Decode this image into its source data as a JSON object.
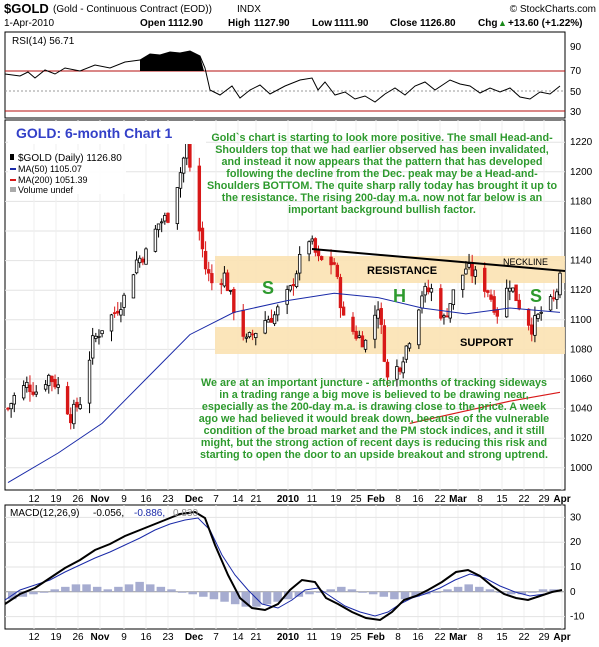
{
  "header": {
    "symbol": "$GOLD",
    "description": "(Gold - Continuous Contract (EOD))",
    "exchange": "INDX",
    "source": "© StockCharts.com",
    "date": "1-Apr-2010",
    "open_label": "Open",
    "open": "1112.90",
    "high_label": "High",
    "high": "1127.90",
    "low_label": "Low",
    "low": "1111.90",
    "close_label": "Close",
    "close": "1126.80",
    "chg_label": "Chg",
    "chg": "+13.60 (+1.22%)",
    "chg_arrow": "▲"
  },
  "rsi_panel": {
    "legend": "RSI(14) 56.71",
    "ticks": [
      "90",
      "70",
      "50",
      "30"
    ]
  },
  "price_panel": {
    "chart_title": "GOLD: 6-month Chart 1",
    "legend_symbol": "$GOLD (Daily) 1126.80",
    "legend_ma50": "MA(50) 1105.07",
    "legend_ma200": "MA(200) 1051.39",
    "legend_volume": "Volume undef",
    "ticks": [
      "1220",
      "1200",
      "1180",
      "1160",
      "1140",
      "1120",
      "1100",
      "1080",
      "1060",
      "1040",
      "1020",
      "1000"
    ],
    "annotations": {
      "comment_top": "Gold`s chart is starting to look more positive. The small Head-and-Shoulders top that we had earlier observed has been invalidated, and instead it now appears that the pattern that has developed following the decline from the Dec. peak may be a Head-and-Shoulders BOTTOM. The quite sharp rally today has brought it up to the resistance. The rising 200-day m.a. now not far below is an important background bullish factor.",
      "comment_bottom": "We are at an important juncture - after months of tracking sideways in a trading range a big move is believed to be drawing near, especially as the 200-day m.a. is drawing close to the price. A week ago we had believed it would break down, because of the vulnerable condition of the broad market and the PM stock indices, and it still might, but the strong action of recent days is reducing this risk and starting to open the door to an upside breakout and strong uptrend.",
      "resistance": "RESISTANCE",
      "support": "SUPPORT",
      "neckline": "NECKLINE",
      "left_shoulder": "S",
      "head": "H",
      "right_shoulder": "S"
    }
  },
  "macd_panel": {
    "legend_label": "MACD(12,26,9)",
    "legend_macd": "-0.056,",
    "legend_signal": "-0.886,",
    "legend_hist": "0.830",
    "ticks": [
      "30",
      "20",
      "10",
      "0",
      "-10"
    ]
  },
  "x_axis": {
    "labels": [
      "12",
      "19",
      "26",
      "Nov",
      "9",
      "16",
      "23",
      "Dec",
      "7",
      "14",
      "21",
      "2010",
      "11",
      "19",
      "25",
      "Feb",
      "8",
      "16",
      "22",
      "Mar",
      "8",
      "15",
      "22",
      "29",
      "Apr"
    ]
  },
  "colors": {
    "up": "#000000",
    "down": "#d81818",
    "ma50": "#1a2aa8",
    "ma200": "#d81818",
    "band": "#fbe2b3",
    "annotation": "#2e9a2e",
    "title": "#3340c8"
  },
  "chart_data": {
    "type": "candlestick",
    "period": "Daily",
    "x_range": [
      "2009-10-07",
      "2010-04-01"
    ],
    "ylim": [
      985,
      1235
    ],
    "y_ticks": [
      1000,
      1020,
      1040,
      1060,
      1080,
      1100,
      1120,
      1140,
      1160,
      1180,
      1200,
      1220
    ],
    "close_series": [
      {
        "x": "2009-10-07",
        "y": 1040
      },
      {
        "x": "2009-10-09",
        "y": 1048
      },
      {
        "x": "2009-10-13",
        "y": 1056
      },
      {
        "x": "2009-10-16",
        "y": 1052
      },
      {
        "x": "2009-10-20",
        "y": 1062
      },
      {
        "x": "2009-10-23",
        "y": 1055
      },
      {
        "x": "2009-10-27",
        "y": 1035
      },
      {
        "x": "2009-10-30",
        "y": 1045
      },
      {
        "x": "2009-11-03",
        "y": 1085
      },
      {
        "x": "2009-11-06",
        "y": 1095
      },
      {
        "x": "2009-11-10",
        "y": 1105
      },
      {
        "x": "2009-11-13",
        "y": 1115
      },
      {
        "x": "2009-11-17",
        "y": 1140
      },
      {
        "x": "2009-11-20",
        "y": 1145
      },
      {
        "x": "2009-11-24",
        "y": 1165
      },
      {
        "x": "2009-11-27",
        "y": 1170
      },
      {
        "x": "2009-12-01",
        "y": 1200
      },
      {
        "x": "2009-12-03",
        "y": 1218
      },
      {
        "x": "2009-12-07",
        "y": 1160
      },
      {
        "x": "2009-12-09",
        "y": 1135
      },
      {
        "x": "2009-12-11",
        "y": 1125
      },
      {
        "x": "2009-12-15",
        "y": 1130
      },
      {
        "x": "2009-12-18",
        "y": 1108
      },
      {
        "x": "2009-12-22",
        "y": 1085
      },
      {
        "x": "2009-12-28",
        "y": 1100
      },
      {
        "x": "2009-12-31",
        "y": 1103
      },
      {
        "x": "2010-01-05",
        "y": 1120
      },
      {
        "x": "2010-01-08",
        "y": 1140
      },
      {
        "x": "2010-01-11",
        "y": 1155
      },
      {
        "x": "2010-01-14",
        "y": 1140
      },
      {
        "x": "2010-01-19",
        "y": 1138
      },
      {
        "x": "2010-01-22",
        "y": 1100
      },
      {
        "x": "2010-01-26",
        "y": 1090
      },
      {
        "x": "2010-01-29",
        "y": 1085
      },
      {
        "x": "2010-02-02",
        "y": 1110
      },
      {
        "x": "2010-02-05",
        "y": 1060
      },
      {
        "x": "2010-02-09",
        "y": 1070
      },
      {
        "x": "2010-02-12",
        "y": 1088
      },
      {
        "x": "2010-02-16",
        "y": 1118
      },
      {
        "x": "2010-02-19",
        "y": 1120
      },
      {
        "x": "2010-02-23",
        "y": 1100
      },
      {
        "x": "2010-02-26",
        "y": 1118
      },
      {
        "x": "2010-03-02",
        "y": 1135
      },
      {
        "x": "2010-03-05",
        "y": 1130
      },
      {
        "x": "2010-03-09",
        "y": 1120
      },
      {
        "x": "2010-03-12",
        "y": 1105
      },
      {
        "x": "2010-03-16",
        "y": 1125
      },
      {
        "x": "2010-03-19",
        "y": 1110
      },
      {
        "x": "2010-03-23",
        "y": 1095
      },
      {
        "x": "2010-03-26",
        "y": 1105
      },
      {
        "x": "2010-03-30",
        "y": 1113
      },
      {
        "x": "2010-04-01",
        "y": 1127
      }
    ],
    "ma50_series": [
      {
        "x": "2009-10-07",
        "y": 990
      },
      {
        "x": "2009-10-23",
        "y": 1010
      },
      {
        "x": "2009-11-06",
        "y": 1030
      },
      {
        "x": "2009-11-20",
        "y": 1060
      },
      {
        "x": "2009-12-04",
        "y": 1090
      },
      {
        "x": "2009-12-18",
        "y": 1105
      },
      {
        "x": "2010-01-04",
        "y": 1113
      },
      {
        "x": "2010-01-19",
        "y": 1118
      },
      {
        "x": "2010-02-02",
        "y": 1115
      },
      {
        "x": "2010-02-16",
        "y": 1108
      },
      {
        "x": "2010-03-02",
        "y": 1104
      },
      {
        "x": "2010-03-16",
        "y": 1108
      },
      {
        "x": "2010-04-01",
        "y": 1105
      }
    ],
    "ma200_series": [
      {
        "x": "2010-02-12",
        "y": 1030
      },
      {
        "x": "2010-03-01",
        "y": 1038
      },
      {
        "x": "2010-03-16",
        "y": 1045
      },
      {
        "x": "2010-04-01",
        "y": 1051
      }
    ],
    "support_band": [
      1080,
      1100
    ],
    "resistance_band": [
      1130,
      1145
    ],
    "neckline": [
      {
        "x": "2010-01-11",
        "y": 1162
      },
      {
        "x": "2010-04-01",
        "y": 1138
      }
    ],
    "rsi": {
      "ylim": [
        25,
        95
      ],
      "levels": [
        30,
        50,
        70
      ],
      "last": 56.71
    },
    "macd": {
      "ylim": [
        -15,
        35
      ],
      "macd_last": -0.056,
      "signal_last": -0.886,
      "hist_last": 0.83
    }
  }
}
